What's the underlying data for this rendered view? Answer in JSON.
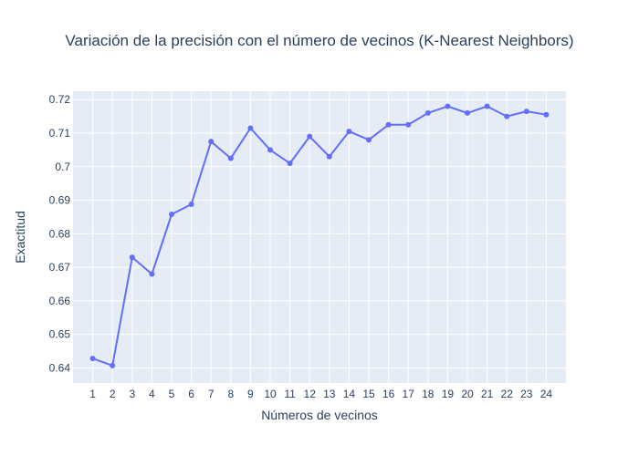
{
  "chart_data": {
    "type": "line",
    "title": "Variación de la precisión con el número de vecinos (K-Nearest Neighbors)",
    "xlabel": "Números de vecinos",
    "ylabel": "Exactitud",
    "x": [
      1,
      2,
      3,
      4,
      5,
      6,
      7,
      8,
      9,
      10,
      11,
      12,
      13,
      14,
      15,
      16,
      17,
      18,
      19,
      20,
      21,
      22,
      23,
      24
    ],
    "y": [
      0.6428,
      0.6407,
      0.673,
      0.668,
      0.6858,
      0.6888,
      0.7075,
      0.7025,
      0.7115,
      0.705,
      0.701,
      0.709,
      0.703,
      0.7105,
      0.708,
      0.7125,
      0.7125,
      0.716,
      0.718,
      0.716,
      0.718,
      0.715,
      0.7165,
      0.7155
    ],
    "xlim": [
      0,
      25
    ],
    "ylim": [
      0.6355,
      0.7225
    ],
    "x_ticks": [
      "1",
      "2",
      "3",
      "4",
      "5",
      "6",
      "7",
      "8",
      "9",
      "10",
      "11",
      "12",
      "13",
      "14",
      "15",
      "16",
      "17",
      "18",
      "19",
      "20",
      "21",
      "22",
      "23",
      "24"
    ],
    "y_ticks": [
      {
        "value": 0.64,
        "label": "0.64"
      },
      {
        "value": 0.65,
        "label": "0.65"
      },
      {
        "value": 0.66,
        "label": "0.66"
      },
      {
        "value": 0.67,
        "label": "0.67"
      },
      {
        "value": 0.68,
        "label": "0.68"
      },
      {
        "value": 0.69,
        "label": "0.69"
      },
      {
        "value": 0.7,
        "label": "0.7"
      },
      {
        "value": 0.71,
        "label": "0.71"
      },
      {
        "value": 0.72,
        "label": "0.72"
      }
    ],
    "grid": true,
    "line_color": "#636efa",
    "plot_background": "#e5ecf6",
    "grid_color": "#ffffff",
    "text_color": "#2a3f5f"
  }
}
